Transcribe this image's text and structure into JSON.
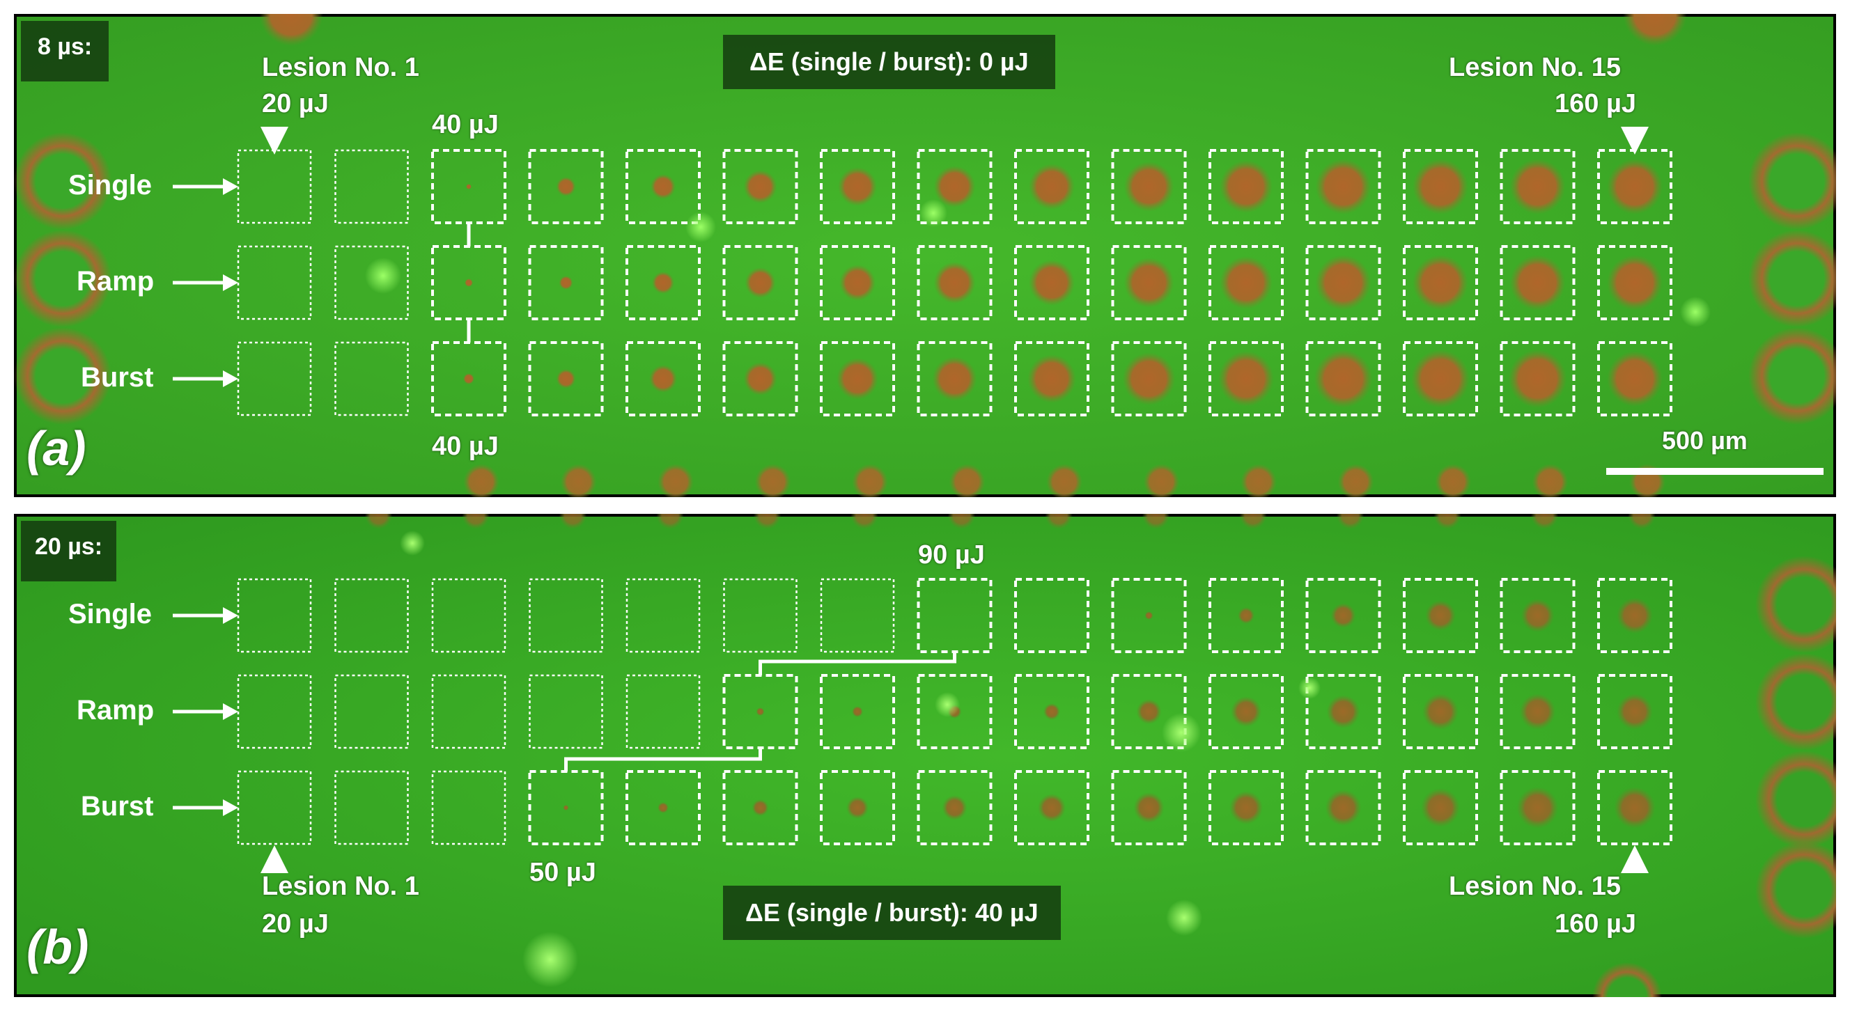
{
  "panels": [
    {
      "id": "a",
      "sublabel": "(a)",
      "pulse_duration": "8 µs:",
      "delta_e": "ΔE (single / burst): 0 µJ",
      "lesion_first": "Lesion No. 1",
      "energy_first": "20 µJ",
      "lesion_last": "Lesion No. 15",
      "energy_last": "160 µJ",
      "threshold_top": "40 µJ",
      "threshold_bottom": "40 µJ",
      "scalebar": "500 µm",
      "rows": [
        "Single",
        "Ramp",
        "Burst"
      ]
    },
    {
      "id": "b",
      "sublabel": "(b)",
      "pulse_duration": "20 µs:",
      "delta_e": "ΔE (single / burst): 40 µJ",
      "lesion_first": "Lesion No. 1",
      "energy_first": "20 µJ",
      "lesion_last": "Lesion No. 15",
      "energy_last": "160 µJ",
      "threshold_top": "90 µJ",
      "threshold_bottom": "50 µJ",
      "rows": [
        "Single",
        "Ramp",
        "Burst"
      ]
    }
  ],
  "colors": {
    "background_green": "#3fb52a",
    "lesion_brown": "#b26a2c",
    "frame": "#000000",
    "text": "#ffffff"
  }
}
